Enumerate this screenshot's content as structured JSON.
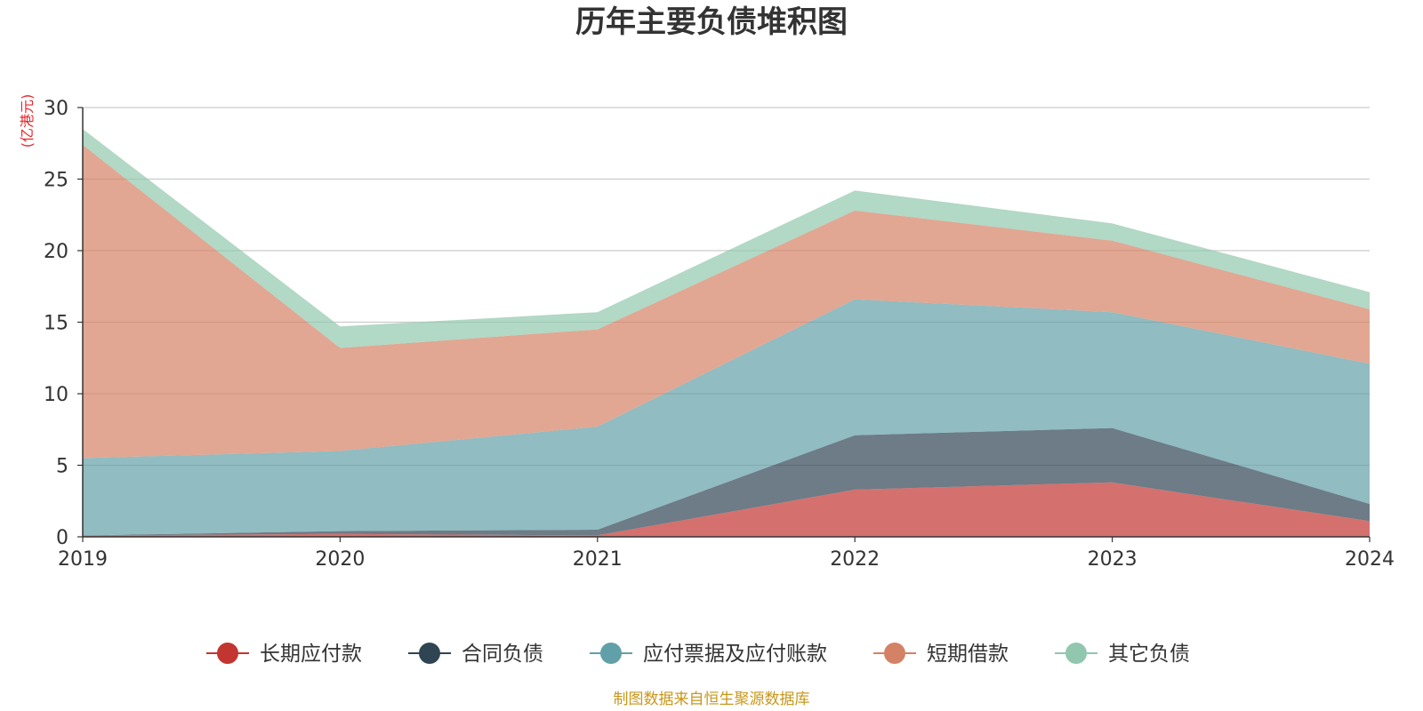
{
  "chart_data": {
    "type": "area",
    "stacked": true,
    "title": "历年主要负债堆积图",
    "unit_label": "(亿港元)",
    "x": [
      "2019",
      "2020",
      "2021",
      "2022",
      "2023",
      "2024"
    ],
    "ylim": [
      0,
      30
    ],
    "yticks": [
      "0",
      "5",
      "10",
      "15",
      "20",
      "25",
      "30"
    ],
    "grid": true,
    "legend_position": "bottom",
    "series": [
      {
        "name": "长期应付款",
        "color": "#c23531",
        "values": [
          0.1,
          0.2,
          0.1,
          3.3,
          3.8,
          1.1
        ]
      },
      {
        "name": "合同负债",
        "color": "#2f4554",
        "values": [
          0.0,
          0.2,
          0.4,
          3.8,
          3.8,
          1.2
        ]
      },
      {
        "name": "应付票据及应付账款",
        "color": "#61a0a8",
        "values": [
          5.4,
          5.6,
          7.2,
          9.5,
          8.1,
          9.8
        ]
      },
      {
        "name": "短期借款",
        "color": "#d48265",
        "values": [
          21.9,
          7.2,
          6.8,
          6.2,
          5.0,
          3.8
        ]
      },
      {
        "name": "其它负债",
        "color": "#91c7ae",
        "values": [
          1.1,
          1.5,
          1.2,
          1.4,
          1.2,
          1.2
        ]
      }
    ],
    "source_note": "制图数据来自恒生聚源数据库"
  }
}
